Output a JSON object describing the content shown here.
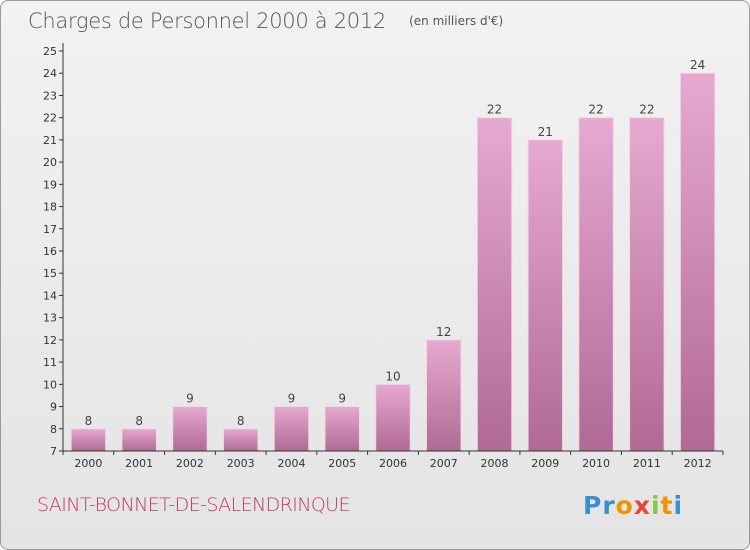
{
  "header": {
    "title": "Charges de Personnel 2000 à 2012",
    "subtitle": "(en milliers d'€)"
  },
  "footer": {
    "place_name": "SAINT-BONNET-DE-SALENDRINQUE"
  },
  "logo": {
    "text": "Proxiti",
    "letters": [
      {
        "ch": "P",
        "color": "#3b8fd0"
      },
      {
        "ch": "r",
        "color": "#3b8fd0"
      },
      {
        "ch": "o",
        "color": "#f39200"
      },
      {
        "ch": "x",
        "color": "#e8453c"
      },
      {
        "ch": "i",
        "color": "#8cc63f"
      },
      {
        "ch": "t",
        "color": "#f39200"
      },
      {
        "ch": "i",
        "color": "#3b8fd0"
      }
    ]
  },
  "chart_data": {
    "type": "bar",
    "title": "Charges de Personnel 2000 à 2012",
    "subtitle": "(en milliers d'€)",
    "categories": [
      "2000",
      "2001",
      "2002",
      "2003",
      "2004",
      "2005",
      "2006",
      "2007",
      "2008",
      "2009",
      "2010",
      "2011",
      "2012"
    ],
    "values": [
      8,
      8,
      9,
      8,
      9,
      9,
      10,
      12,
      22,
      21,
      22,
      22,
      24
    ],
    "data_labels": [
      "8",
      "8",
      "9",
      "8",
      "9",
      "9",
      "10",
      "12",
      "22",
      "21",
      "22",
      "22",
      "24"
    ],
    "ylim": [
      7,
      25
    ],
    "yticks": [
      "7",
      "8",
      "9",
      "10",
      "11",
      "12",
      "13",
      "14",
      "15",
      "16",
      "17",
      "18",
      "19",
      "20",
      "21",
      "22",
      "23",
      "24",
      "25"
    ],
    "xlabel": "",
    "ylabel": "",
    "grid": false,
    "bar_color": "#d68fb7",
    "bar_color_light": "#e6a9cf",
    "bar_color_dark": "#b06a94"
  }
}
